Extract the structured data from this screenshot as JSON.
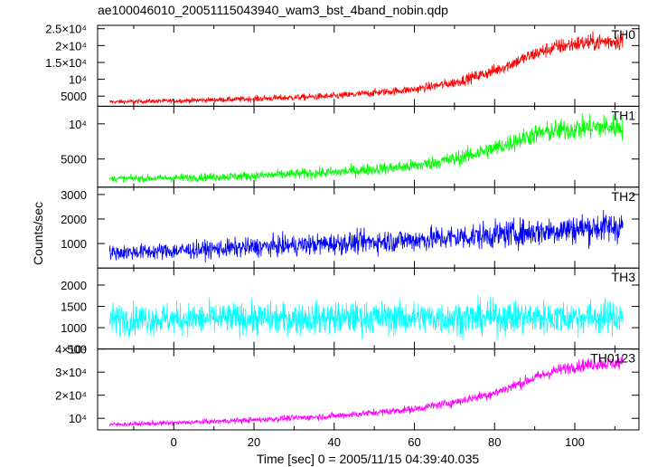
{
  "title": "ae100046010_20051115043940_wam3_bst_4band_nobin.qdp",
  "chart_data": {
    "type": "line",
    "title": "ae100046010_20051115043940_wam3_bst_4band_nobin.qdp",
    "xlabel": "Time [sec] 0 = 2005/11/15 04:39:40.035",
    "ylabel": "Counts/sec",
    "xlim": [
      -19,
      116
    ],
    "xticks": [
      0,
      20,
      40,
      60,
      80,
      100
    ],
    "xtick_labels": [
      "0",
      "20",
      "40",
      "60",
      "80",
      "100"
    ],
    "x_data_range": [
      -16,
      112
    ],
    "panels": [
      {
        "name": "TH0",
        "color": "#ff0000",
        "ylim": [
          2000,
          26000
        ],
        "yticks": [
          5000,
          10000,
          15000,
          20000,
          25000
        ],
        "ytick_labels": [
          "5000",
          "10⁴",
          "1.5×10⁴",
          "2×10⁴",
          "2.5×10⁴"
        ],
        "profile": {
          "x": [
            -16,
            0,
            20,
            40,
            60,
            70,
            80,
            90,
            95,
            100,
            105,
            112
          ],
          "y": [
            3300,
            3600,
            4200,
            5000,
            7000,
            9000,
            12500,
            17500,
            19500,
            20500,
            21000,
            21500
          ]
        },
        "noise": [
          {
            "x": -16,
            "sd": 280
          },
          {
            "x": 60,
            "sd": 600
          },
          {
            "x": 112,
            "sd": 1400
          }
        ]
      },
      {
        "name": "TH1",
        "color": "#00ff00",
        "ylim": [
          1000,
          12500
        ],
        "yticks": [
          5000,
          10000
        ],
        "ytick_labels": [
          "5000",
          "10⁴"
        ],
        "profile": {
          "x": [
            -16,
            0,
            20,
            40,
            60,
            70,
            80,
            90,
            95,
            100,
            105,
            112
          ],
          "y": [
            2200,
            2300,
            2600,
            3100,
            4000,
            5000,
            6500,
            8500,
            9000,
            9300,
            9500,
            9600
          ]
        },
        "noise": [
          {
            "x": -16,
            "sd": 220
          },
          {
            "x": 60,
            "sd": 450
          },
          {
            "x": 112,
            "sd": 900
          }
        ]
      },
      {
        "name": "TH2",
        "color": "#0000ff",
        "ylim": [
          0,
          3300
        ],
        "yticks": [
          1000,
          2000,
          3000
        ],
        "ytick_labels": [
          "1000",
          "2000",
          "3000"
        ],
        "profile": {
          "x": [
            -16,
            0,
            20,
            40,
            60,
            80,
            100,
            112
          ],
          "y": [
            620,
            700,
            850,
            1000,
            1150,
            1350,
            1600,
            1700
          ]
        },
        "noise": [
          {
            "x": -16,
            "sd": 150
          },
          {
            "x": 60,
            "sd": 240
          },
          {
            "x": 112,
            "sd": 320
          }
        ]
      },
      {
        "name": "TH3",
        "color": "#00ffff",
        "ylim": [
          500,
          2400
        ],
        "yticks": [
          500,
          1000,
          1500,
          2000
        ],
        "ytick_labels": [
          "500",
          "1000",
          "1500",
          "2000"
        ],
        "profile": {
          "x": [
            -16,
            112
          ],
          "y": [
            1200,
            1250
          ]
        },
        "noise": [
          {
            "x": -16,
            "sd": 180
          },
          {
            "x": 112,
            "sd": 200
          }
        ]
      },
      {
        "name": "TH0123",
        "color": "#ff00ff",
        "ylim": [
          5000,
          40000
        ],
        "yticks": [
          10000,
          20000,
          30000,
          40000
        ],
        "ytick_labels": [
          "10⁴",
          "2×10⁴",
          "3×10⁴",
          "4×10⁴"
        ],
        "profile": {
          "x": [
            -16,
            0,
            20,
            40,
            60,
            70,
            80,
            90,
            95,
            100,
            105,
            112
          ],
          "y": [
            7300,
            8000,
            9300,
            11000,
            14000,
            17000,
            21000,
            27500,
            30500,
            32500,
            33500,
            34000
          ]
        },
        "noise": [
          {
            "x": -16,
            "sd": 450
          },
          {
            "x": 60,
            "sd": 800
          },
          {
            "x": 112,
            "sd": 1500
          }
        ]
      }
    ]
  }
}
